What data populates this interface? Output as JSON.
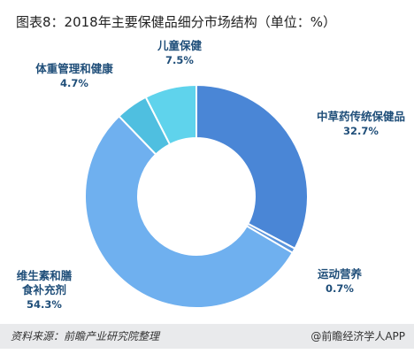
{
  "title": "图表8：2018年主要保健品细分市场结构（单位：%）",
  "chart_data": {
    "type": "pie",
    "variant": "donut",
    "title": "图表8：2018年主要保健品细分市场结构（单位：%）",
    "unit": "%",
    "slices": [
      {
        "label": "中草药传统保健品",
        "value": 32.7,
        "value_label": "32.7%",
        "color": "#4a86d6"
      },
      {
        "label": "运动营养",
        "value": 0.7,
        "value_label": "0.7%",
        "color": "#5b95dc"
      },
      {
        "label": "维生素和膳食补充剂",
        "value": 54.3,
        "value_label": "54.3%",
        "color": "#6fb0ef"
      },
      {
        "label": "体重管理和健康",
        "value": 4.7,
        "value_label": "4.7%",
        "color": "#4fbfe0"
      },
      {
        "label": "儿童保健",
        "value": 7.5,
        "value_label": "7.5%",
        "color": "#5fd3ec"
      }
    ]
  },
  "footer": {
    "source": "资料来源：前瞻产业研究院整理",
    "brand_at": "@",
    "brand": "前瞻经济学人APP"
  }
}
